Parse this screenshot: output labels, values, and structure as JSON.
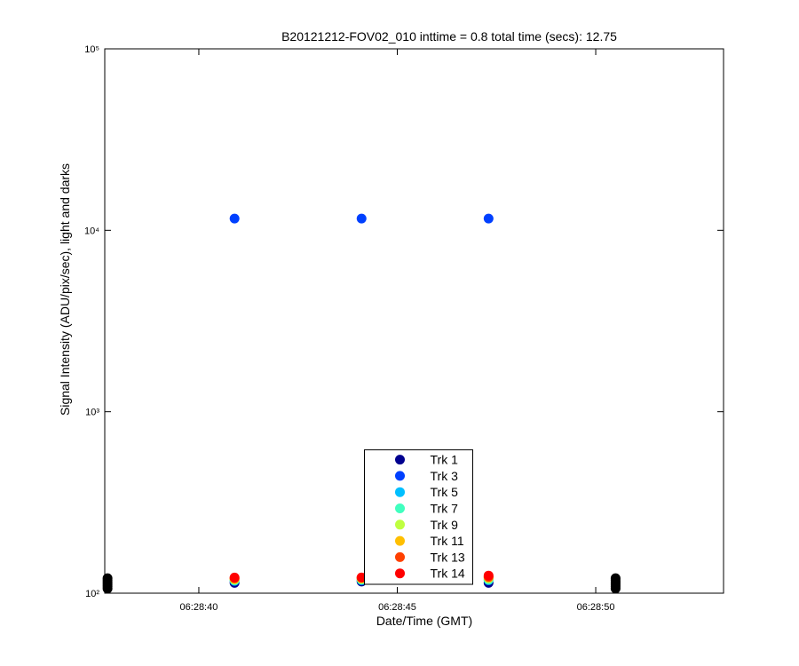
{
  "chart_data": {
    "type": "scatter",
    "title": "B20121212-FOV02_010 inttime = 0.8 total time (secs): 12.75",
    "xlabel": "Date/Time (GMT)",
    "ylabel": "Signal Intensity (ADU/pix/sec), light and darks",
    "xlim": [
      37.63,
      53.22
    ],
    "xticks": [
      {
        "value": 40,
        "label": "06:28:40"
      },
      {
        "value": 45,
        "label": "06:28:45"
      },
      {
        "value": 50,
        "label": "06:28:50"
      }
    ],
    "ylim": [
      100,
      100000
    ],
    "yticks": [
      {
        "value": 100,
        "label": "10²"
      },
      {
        "value": 1000,
        "label": "10³"
      },
      {
        "value": 10000,
        "label": "10⁴"
      },
      {
        "value": 100000,
        "label": "10⁵"
      }
    ],
    "log_y": true,
    "grid": false,
    "legend": "south",
    "series": [
      {
        "name": "Trk 1",
        "color": "#00008f",
        "x": [
          40.9,
          44.1,
          47.3
        ],
        "values": [
          114,
          116,
          114
        ]
      },
      {
        "name": "Trk 3",
        "color": "#0040ff",
        "x": [
          40.9,
          44.1,
          47.3
        ],
        "values": [
          11600,
          11600,
          11600
        ]
      },
      {
        "name": "Trk 5",
        "color": "#00bfff",
        "x": [
          40.9,
          44.1,
          47.3
        ],
        "values": [
          117,
          118,
          118
        ]
      },
      {
        "name": "Trk 7",
        "color": "#40ffbf",
        "x": [
          40.9,
          44.1,
          47.3
        ],
        "values": [
          118,
          119,
          119
        ]
      },
      {
        "name": "Trk 9",
        "color": "#bfff40",
        "x": [
          40.9,
          44.1,
          47.3
        ],
        "values": [
          119,
          120,
          121
        ]
      },
      {
        "name": "Trk 11",
        "color": "#ffbf00",
        "x": [
          40.9,
          44.1,
          47.3
        ],
        "values": [
          120,
          121,
          122
        ]
      },
      {
        "name": "Trk 13",
        "color": "#ff4000",
        "x": [
          40.9,
          44.1,
          47.3
        ],
        "values": [
          121,
          122,
          123
        ]
      },
      {
        "name": "Trk 14",
        "color": "#ff0000",
        "x": [
          40.9,
          44.1,
          47.3
        ],
        "values": [
          122,
          122,
          125
        ]
      },
      {
        "color": "#000000",
        "x": [
          37.7,
          37.7,
          37.7,
          37.7,
          37.7,
          37.7,
          50.5,
          50.5,
          50.5,
          50.5,
          50.5,
          50.5
        ],
        "values": [
          106,
          109,
          112,
          115,
          118,
          121,
          106,
          109,
          112,
          115,
          118,
          121
        ]
      }
    ]
  }
}
